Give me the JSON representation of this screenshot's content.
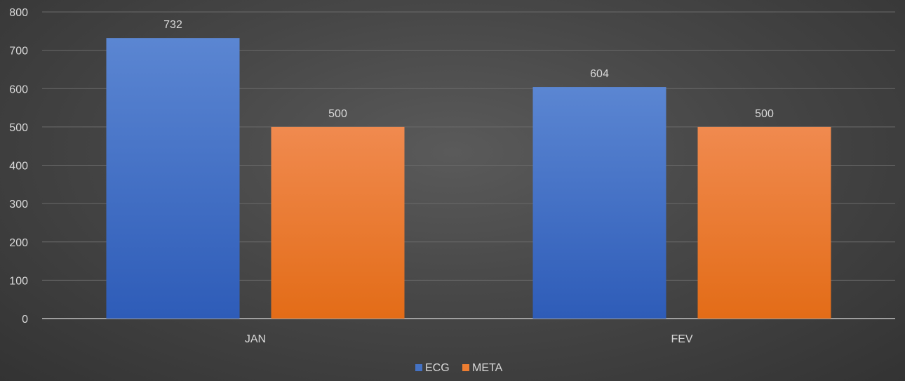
{
  "chart_data": {
    "type": "bar",
    "categories": [
      "JAN",
      "FEV"
    ],
    "series": [
      {
        "name": "ECG",
        "values": [
          732,
          604
        ],
        "color": "#4472c4"
      },
      {
        "name": "META",
        "values": [
          500,
          500
        ],
        "color": "#ed7d31"
      }
    ],
    "ylim": [
      0,
      800
    ],
    "yticks": [
      0,
      100,
      200,
      300,
      400,
      500,
      600,
      700,
      800
    ],
    "grid": true,
    "legend": "bottom-center",
    "data_labels": true
  }
}
